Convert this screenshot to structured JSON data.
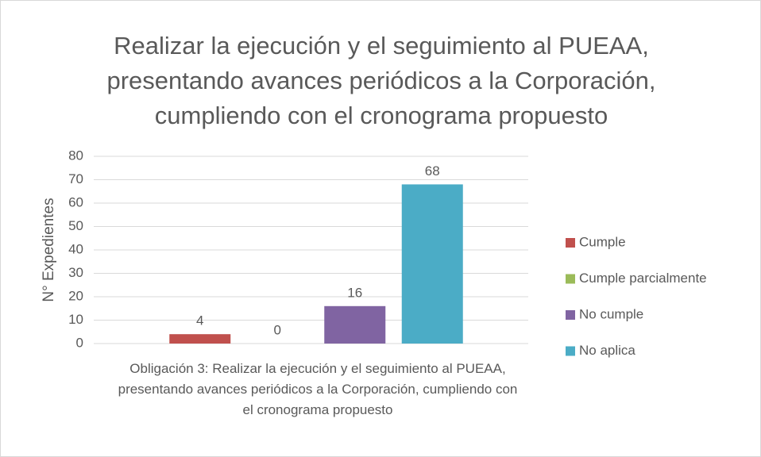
{
  "chart_data": {
    "type": "bar",
    "title": "Realizar la ejecución y el seguimiento al PUEAA, presentando avances periódicos a la Corporación, cumpliendo con el cronograma propuesto",
    "y_label": "N° Expedientes",
    "categories": [
      "Obligación 3: Realizar la ejecución y el seguimiento al PUEAA, presentando avances periódicos a la Corporación, cumpliendo con el cronograma propuesto"
    ],
    "series": [
      {
        "name": "Cumple",
        "color": "#c0504d",
        "values": [
          4
        ]
      },
      {
        "name": "Cumple parcialmente",
        "color": "#9bbb59",
        "values": [
          0
        ]
      },
      {
        "name": "No cumple",
        "color": "#8064a2",
        "values": [
          16
        ]
      },
      {
        "name": "No aplica",
        "color": "#4bacc6",
        "values": [
          68
        ]
      }
    ],
    "ylim": [
      0,
      80
    ],
    "yticks": [
      0,
      10,
      20,
      30,
      40,
      50,
      60,
      70,
      80
    ],
    "grid": true,
    "legend": "right"
  }
}
